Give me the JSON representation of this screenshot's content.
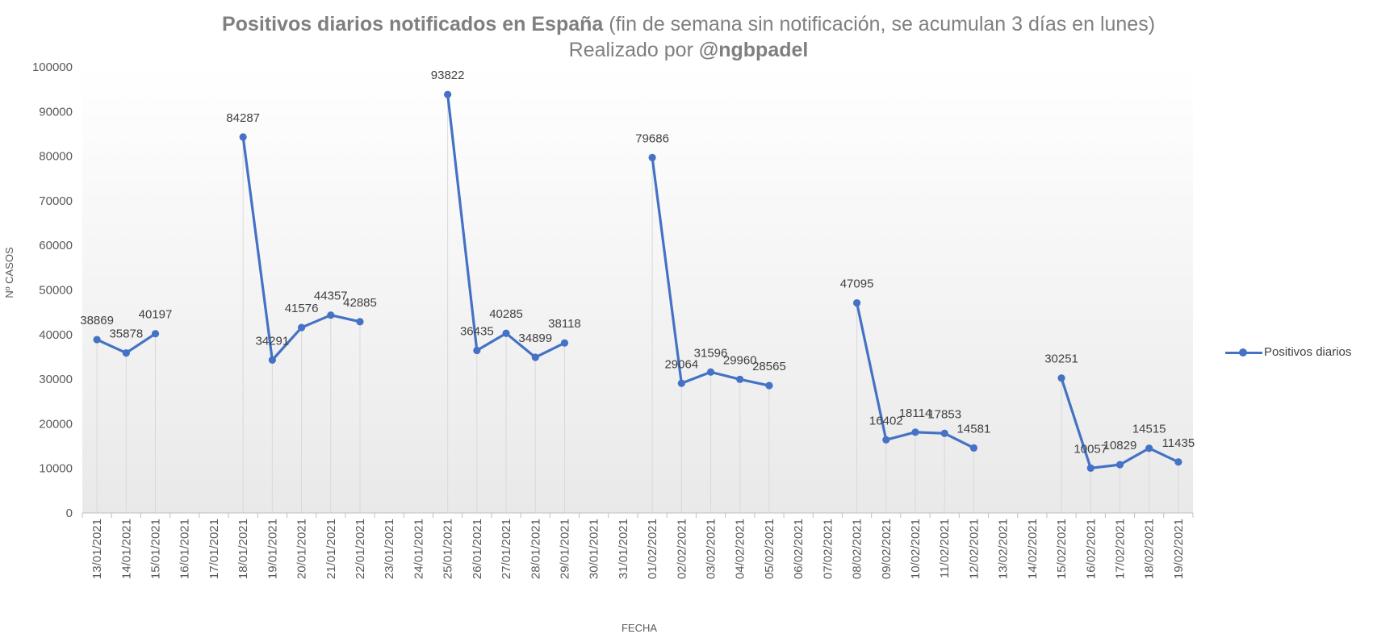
{
  "header": {
    "title_bold": "Positivos diarios notificados en España",
    "title_rest": " (fin de semana sin notificación, se acumulan 3 días en lunes)",
    "subtitle_pre": "Realizado por ",
    "subtitle_handle": "@ngbpadel"
  },
  "legend": {
    "label": "Positivos diarios"
  },
  "colors": {
    "series": "#4472c4",
    "drop_line": "#d9d9d9",
    "bg_top": "#ffffff",
    "bg_bottom": "#e9e9e9"
  },
  "chart_data": {
    "type": "line",
    "title": "Positivos diarios notificados en España (fin de semana sin notificación, se acumulan 3 días en lunes)",
    "subtitle": "Realizado por @ngbpadel",
    "xlabel": "FECHA",
    "ylabel": "Nº CASOS",
    "ylim": [
      0,
      100000
    ],
    "yticks": [
      0,
      10000,
      20000,
      30000,
      40000,
      50000,
      60000,
      70000,
      80000,
      90000,
      100000
    ],
    "legend_position": "right",
    "categories": [
      "13/01/2021",
      "14/01/2021",
      "15/01/2021",
      "16/01/2021",
      "17/01/2021",
      "18/01/2021",
      "19/01/2021",
      "20/01/2021",
      "21/01/2021",
      "22/01/2021",
      "23/01/2021",
      "24/01/2021",
      "25/01/2021",
      "26/01/2021",
      "27/01/2021",
      "28/01/2021",
      "29/01/2021",
      "30/01/2021",
      "31/01/2021",
      "01/02/2021",
      "02/02/2021",
      "03/02/2021",
      "04/02/2021",
      "05/02/2021",
      "06/02/2021",
      "07/02/2021",
      "08/02/2021",
      "09/02/2021",
      "10/02/2021",
      "11/02/2021",
      "12/02/2021",
      "13/02/2021",
      "14/02/2021",
      "15/02/2021",
      "16/02/2021",
      "17/02/2021",
      "18/02/2021",
      "19/02/2021"
    ],
    "series": [
      {
        "name": "Positivos diarios",
        "values": [
          38869,
          35878,
          40197,
          null,
          null,
          84287,
          34291,
          41576,
          44357,
          42885,
          null,
          null,
          93822,
          36435,
          40285,
          34899,
          38118,
          null,
          null,
          79686,
          29064,
          31596,
          29960,
          28565,
          null,
          null,
          47095,
          16402,
          18114,
          17853,
          14581,
          null,
          null,
          30251,
          10057,
          10829,
          14515,
          11435
        ]
      }
    ]
  }
}
